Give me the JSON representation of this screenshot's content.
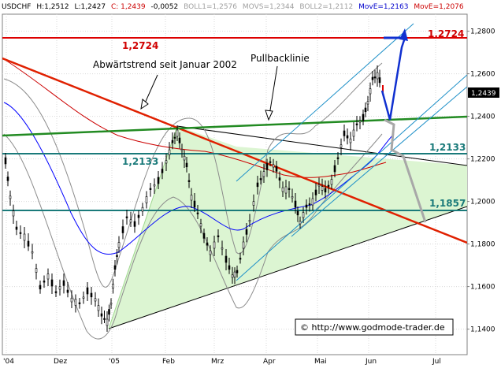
{
  "header": {
    "symbol": "USDCHF",
    "high_label": "H:1,2512",
    "low_label": "L:1,2427",
    "close_label": "C: 1,2439",
    "change": "-0,0052",
    "boll1": "BOLL1=1,2576",
    "movs": "MOVS=1,2344",
    "boll2": "BOLL2=1,2112",
    "move1": "MovE=1,2163",
    "move2": "MovE=1,2076"
  },
  "colors": {
    "price": "#000000",
    "boll": "#8c8c8c",
    "movs": "#0000ff",
    "move": "#cc0000",
    "resistance": "#dd0000",
    "trend_red": "#e02000",
    "green_line": "#228b22",
    "teal": "#1a7a7a",
    "channel": "#1e90c8",
    "triangle_fill": "#dcf5d2",
    "projection_blue": "#1030d0",
    "projection_gray": "#a8a8a8"
  },
  "annotations": {
    "downtrend_label": "Abwärtstrend seit Januar 2002",
    "pullback_label": "Pullbacklinie",
    "level_1_2724": "1,2724",
    "level_1_2133_left": "1,2133",
    "level_1_2133_right": "1,2133",
    "level_1_1857": "1,1857",
    "current_price": "1,2439",
    "copyright": "© http://www.godmode-trader.de"
  },
  "chart_data": {
    "type": "candlestick",
    "title": "",
    "xlabel": "",
    "ylabel": "",
    "x_ticks": [
      "'04",
      "Dez",
      "'05",
      "Feb",
      "Mrz",
      "Apr",
      "Mai",
      "Jun",
      "Jul"
    ],
    "y_ticks": [
      "1,1400",
      "1,1600",
      "1,1800",
      "1,2000",
      "1,2200",
      "1,2400",
      "1,2600",
      "1,2800"
    ],
    "ylim": [
      1.128,
      1.288
    ],
    "horizontal_levels": [
      1.2724,
      1.2133,
      1.1857
    ],
    "grid": true,
    "legend": "none"
  }
}
